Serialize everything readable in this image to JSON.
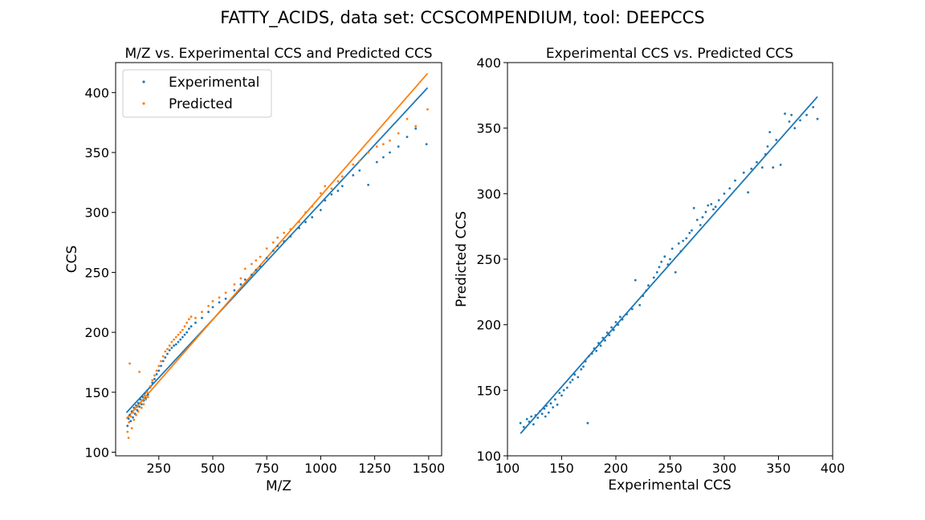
{
  "figure": {
    "suptitle": "FATTY_ACIDS, data set: CCSCOMPENDIUM, tool: DEEPCCS"
  },
  "colors": {
    "experimental": "#1f77b4",
    "predicted": "#ff7f0e"
  },
  "chart_data": [
    {
      "type": "scatter",
      "title": "M/Z vs. Experimental CCS and Predicted CCS",
      "xlabel": "M/Z",
      "ylabel": "CCS",
      "xlim": [
        50,
        1560
      ],
      "ylim": [
        97,
        425
      ],
      "xticks": [
        250,
        500,
        750,
        1000,
        1250,
        1500
      ],
      "yticks": [
        100,
        150,
        200,
        250,
        300,
        350,
        400
      ],
      "grid": false,
      "legend": "top-left",
      "series": [
        {
          "name": "Experimental",
          "color": "#1f77b4",
          "points": [
            [
              105,
              122
            ],
            [
              110,
              128
            ],
            [
              115,
              131
            ],
            [
              120,
              126
            ],
            [
              125,
              134
            ],
            [
              130,
              129
            ],
            [
              135,
              137
            ],
            [
              140,
              132
            ],
            [
              145,
              139
            ],
            [
              150,
              135
            ],
            [
              155,
              141
            ],
            [
              160,
              138
            ],
            [
              165,
              144
            ],
            [
              170,
              140
            ],
            [
              175,
              146
            ],
            [
              180,
              143
            ],
            [
              185,
              149
            ],
            [
              190,
              145
            ],
            [
              195,
              151
            ],
            [
              200,
              148
            ],
            [
              210,
              154
            ],
            [
              220,
              158
            ],
            [
              230,
              161
            ],
            [
              240,
              165
            ],
            [
              250,
              168
            ],
            [
              260,
              172
            ],
            [
              270,
              176
            ],
            [
              280,
              179
            ],
            [
              290,
              182
            ],
            [
              300,
              185
            ],
            [
              310,
              187
            ],
            [
              320,
              189
            ],
            [
              330,
              190
            ],
            [
              340,
              192
            ],
            [
              350,
              194
            ],
            [
              360,
              196
            ],
            [
              370,
              198
            ],
            [
              380,
              200
            ],
            [
              390,
              203
            ],
            [
              400,
              205
            ],
            [
              420,
              208
            ],
            [
              450,
              212
            ],
            [
              480,
              217
            ],
            [
              500,
              221
            ],
            [
              530,
              225
            ],
            [
              560,
              228
            ],
            [
              600,
              235
            ],
            [
              630,
              240
            ],
            [
              650,
              244
            ],
            [
              680,
              248
            ],
            [
              700,
              252
            ],
            [
              720,
              255
            ],
            [
              750,
              262
            ],
            [
              780,
              268
            ],
            [
              800,
              272
            ],
            [
              830,
              276
            ],
            [
              860,
              280
            ],
            [
              900,
              287
            ],
            [
              930,
              292
            ],
            [
              960,
              296
            ],
            [
              1000,
              302
            ],
            [
              1020,
              310
            ],
            [
              1050,
              315
            ],
            [
              1080,
              318
            ],
            [
              1100,
              322
            ],
            [
              1150,
              331
            ],
            [
              1180,
              335
            ],
            [
              1220,
              323
            ],
            [
              1260,
              342
            ],
            [
              1290,
              346
            ],
            [
              1320,
              350
            ],
            [
              1360,
              355
            ],
            [
              1400,
              363
            ],
            [
              1440,
              370
            ],
            [
              1490,
              357
            ]
          ]
        },
        {
          "name": "Predicted",
          "color": "#ff7f0e",
          "points": [
            [
              105,
              117
            ],
            [
              110,
              112
            ],
            [
              112,
              125
            ],
            [
              115,
              174
            ],
            [
              120,
              130
            ],
            [
              125,
              120
            ],
            [
              130,
              133
            ],
            [
              135,
              127
            ],
            [
              140,
              136
            ],
            [
              145,
              131
            ],
            [
              150,
              138
            ],
            [
              155,
              134
            ],
            [
              160,
              167
            ],
            [
              165,
              141
            ],
            [
              170,
              137
            ],
            [
              175,
              143
            ],
            [
              180,
              140
            ],
            [
              185,
              147
            ],
            [
              190,
              144
            ],
            [
              195,
              150
            ],
            [
              200,
              146
            ],
            [
              210,
              155
            ],
            [
              220,
              160
            ],
            [
              230,
              164
            ],
            [
              240,
              168
            ],
            [
              250,
              172
            ],
            [
              260,
              176
            ],
            [
              270,
              180
            ],
            [
              280,
              184
            ],
            [
              290,
              186
            ],
            [
              300,
              189
            ],
            [
              310,
              192
            ],
            [
              320,
              194
            ],
            [
              330,
              196
            ],
            [
              340,
              198
            ],
            [
              350,
              200
            ],
            [
              360,
              202
            ],
            [
              370,
              205
            ],
            [
              380,
              208
            ],
            [
              390,
              211
            ],
            [
              400,
              213
            ],
            [
              420,
              212
            ],
            [
              450,
              217
            ],
            [
              480,
              222
            ],
            [
              500,
              226
            ],
            [
              530,
              229
            ],
            [
              560,
              233
            ],
            [
              600,
              240
            ],
            [
              630,
              245
            ],
            [
              650,
              253
            ],
            [
              680,
              257
            ],
            [
              700,
              260
            ],
            [
              720,
              263
            ],
            [
              750,
              270
            ],
            [
              780,
              275
            ],
            [
              800,
              279
            ],
            [
              830,
              283
            ],
            [
              860,
              286
            ],
            [
              900,
              292
            ],
            [
              930,
              300
            ],
            [
              960,
              305
            ],
            [
              1000,
              316
            ],
            [
              1020,
              322
            ],
            [
              1050,
              320
            ],
            [
              1080,
              326
            ],
            [
              1100,
              330
            ],
            [
              1150,
              340
            ],
            [
              1180,
              343
            ],
            [
              1220,
              350
            ],
            [
              1260,
              355
            ],
            [
              1290,
              357
            ],
            [
              1320,
              360
            ],
            [
              1360,
              366
            ],
            [
              1400,
              378
            ],
            [
              1440,
              372
            ],
            [
              1495,
              386
            ]
          ]
        }
      ],
      "fit_lines": [
        {
          "series": "Experimental",
          "color": "#1f77b4",
          "x": [
            100,
            1495
          ],
          "y": [
            133,
            404
          ]
        },
        {
          "series": "Predicted",
          "color": "#ff7f0e",
          "x": [
            100,
            1495
          ],
          "y": [
            128,
            416
          ]
        }
      ]
    },
    {
      "type": "scatter",
      "title": "Experimental CCS vs. Predicted CCS",
      "xlabel": "Experimental CCS",
      "ylabel": "Predicted CCS",
      "xlim": [
        100,
        400
      ],
      "ylim": [
        100,
        400
      ],
      "xticks": [
        100,
        150,
        200,
        250,
        300,
        350,
        400
      ],
      "yticks": [
        100,
        150,
        200,
        250,
        300,
        350,
        400
      ],
      "grid": false,
      "series": [
        {
          "color": "#1f77b4",
          "points": [
            [
              112,
              125
            ],
            [
              115,
              122
            ],
            [
              118,
              128
            ],
            [
              120,
              126
            ],
            [
              122,
              130
            ],
            [
              124,
              124
            ],
            [
              126,
              131
            ],
            [
              128,
              129
            ],
            [
              130,
              134
            ],
            [
              132,
              132
            ],
            [
              134,
              136
            ],
            [
              135,
              130
            ],
            [
              136,
              138
            ],
            [
              138,
              133
            ],
            [
              140,
              140
            ],
            [
              142,
              137
            ],
            [
              144,
              143
            ],
            [
              146,
              139
            ],
            [
              148,
              148
            ],
            [
              150,
              146
            ],
            [
              152,
              150
            ],
            [
              155,
              152
            ],
            [
              158,
              156
            ],
            [
              160,
              158
            ],
            [
              162,
              162
            ],
            [
              165,
              160
            ],
            [
              168,
              166
            ],
            [
              170,
              168
            ],
            [
              172,
              172
            ],
            [
              174,
              125
            ],
            [
              175,
              176
            ],
            [
              178,
              178
            ],
            [
              180,
              182
            ],
            [
              182,
              180
            ],
            [
              184,
              186
            ],
            [
              186,
              184
            ],
            [
              188,
              190
            ],
            [
              190,
              188
            ],
            [
              192,
              194
            ],
            [
              194,
              192
            ],
            [
              196,
              198
            ],
            [
              198,
              196
            ],
            [
              200,
              202
            ],
            [
              202,
              200
            ],
            [
              204,
              206
            ],
            [
              206,
              204
            ],
            [
              210,
              208
            ],
            [
              215,
              212
            ],
            [
              218,
              234
            ],
            [
              222,
              215
            ],
            [
              225,
              222
            ],
            [
              228,
              226
            ],
            [
              230,
              230
            ],
            [
              235,
              236
            ],
            [
              238,
              240
            ],
            [
              240,
              244
            ],
            [
              242,
              248
            ],
            [
              245,
              252
            ],
            [
              248,
              246
            ],
            [
              250,
              250
            ],
            [
              252,
              258
            ],
            [
              255,
              240
            ],
            [
              258,
              262
            ],
            [
              260,
              256
            ],
            [
              262,
              264
            ],
            [
              265,
              266
            ],
            [
              268,
              270
            ],
            [
              270,
              272
            ],
            [
              272,
              289
            ],
            [
              275,
              280
            ],
            [
              278,
              276
            ],
            [
              280,
              282
            ],
            [
              283,
              286
            ],
            [
              285,
              291
            ],
            [
              288,
              292
            ],
            [
              290,
              288
            ],
            [
              292,
              290
            ],
            [
              295,
              295
            ],
            [
              300,
              300
            ],
            [
              305,
              304
            ],
            [
              310,
              310
            ],
            [
              318,
              316
            ],
            [
              322,
              301
            ],
            [
              325,
              319
            ],
            [
              330,
              324
            ],
            [
              335,
              320
            ],
            [
              338,
              330
            ],
            [
              340,
              336
            ],
            [
              342,
              347
            ],
            [
              345,
              320
            ],
            [
              348,
              341
            ],
            [
              352,
              322
            ],
            [
              356,
              361
            ],
            [
              360,
              355
            ],
            [
              362,
              360
            ],
            [
              365,
              350
            ],
            [
              370,
              356
            ],
            [
              376,
              360
            ],
            [
              382,
              366
            ],
            [
              386,
              357
            ]
          ]
        }
      ],
      "fit_lines": [
        {
          "color": "#1f77b4",
          "x": [
            112,
            386
          ],
          "y": [
            117,
            374
          ]
        }
      ]
    }
  ]
}
